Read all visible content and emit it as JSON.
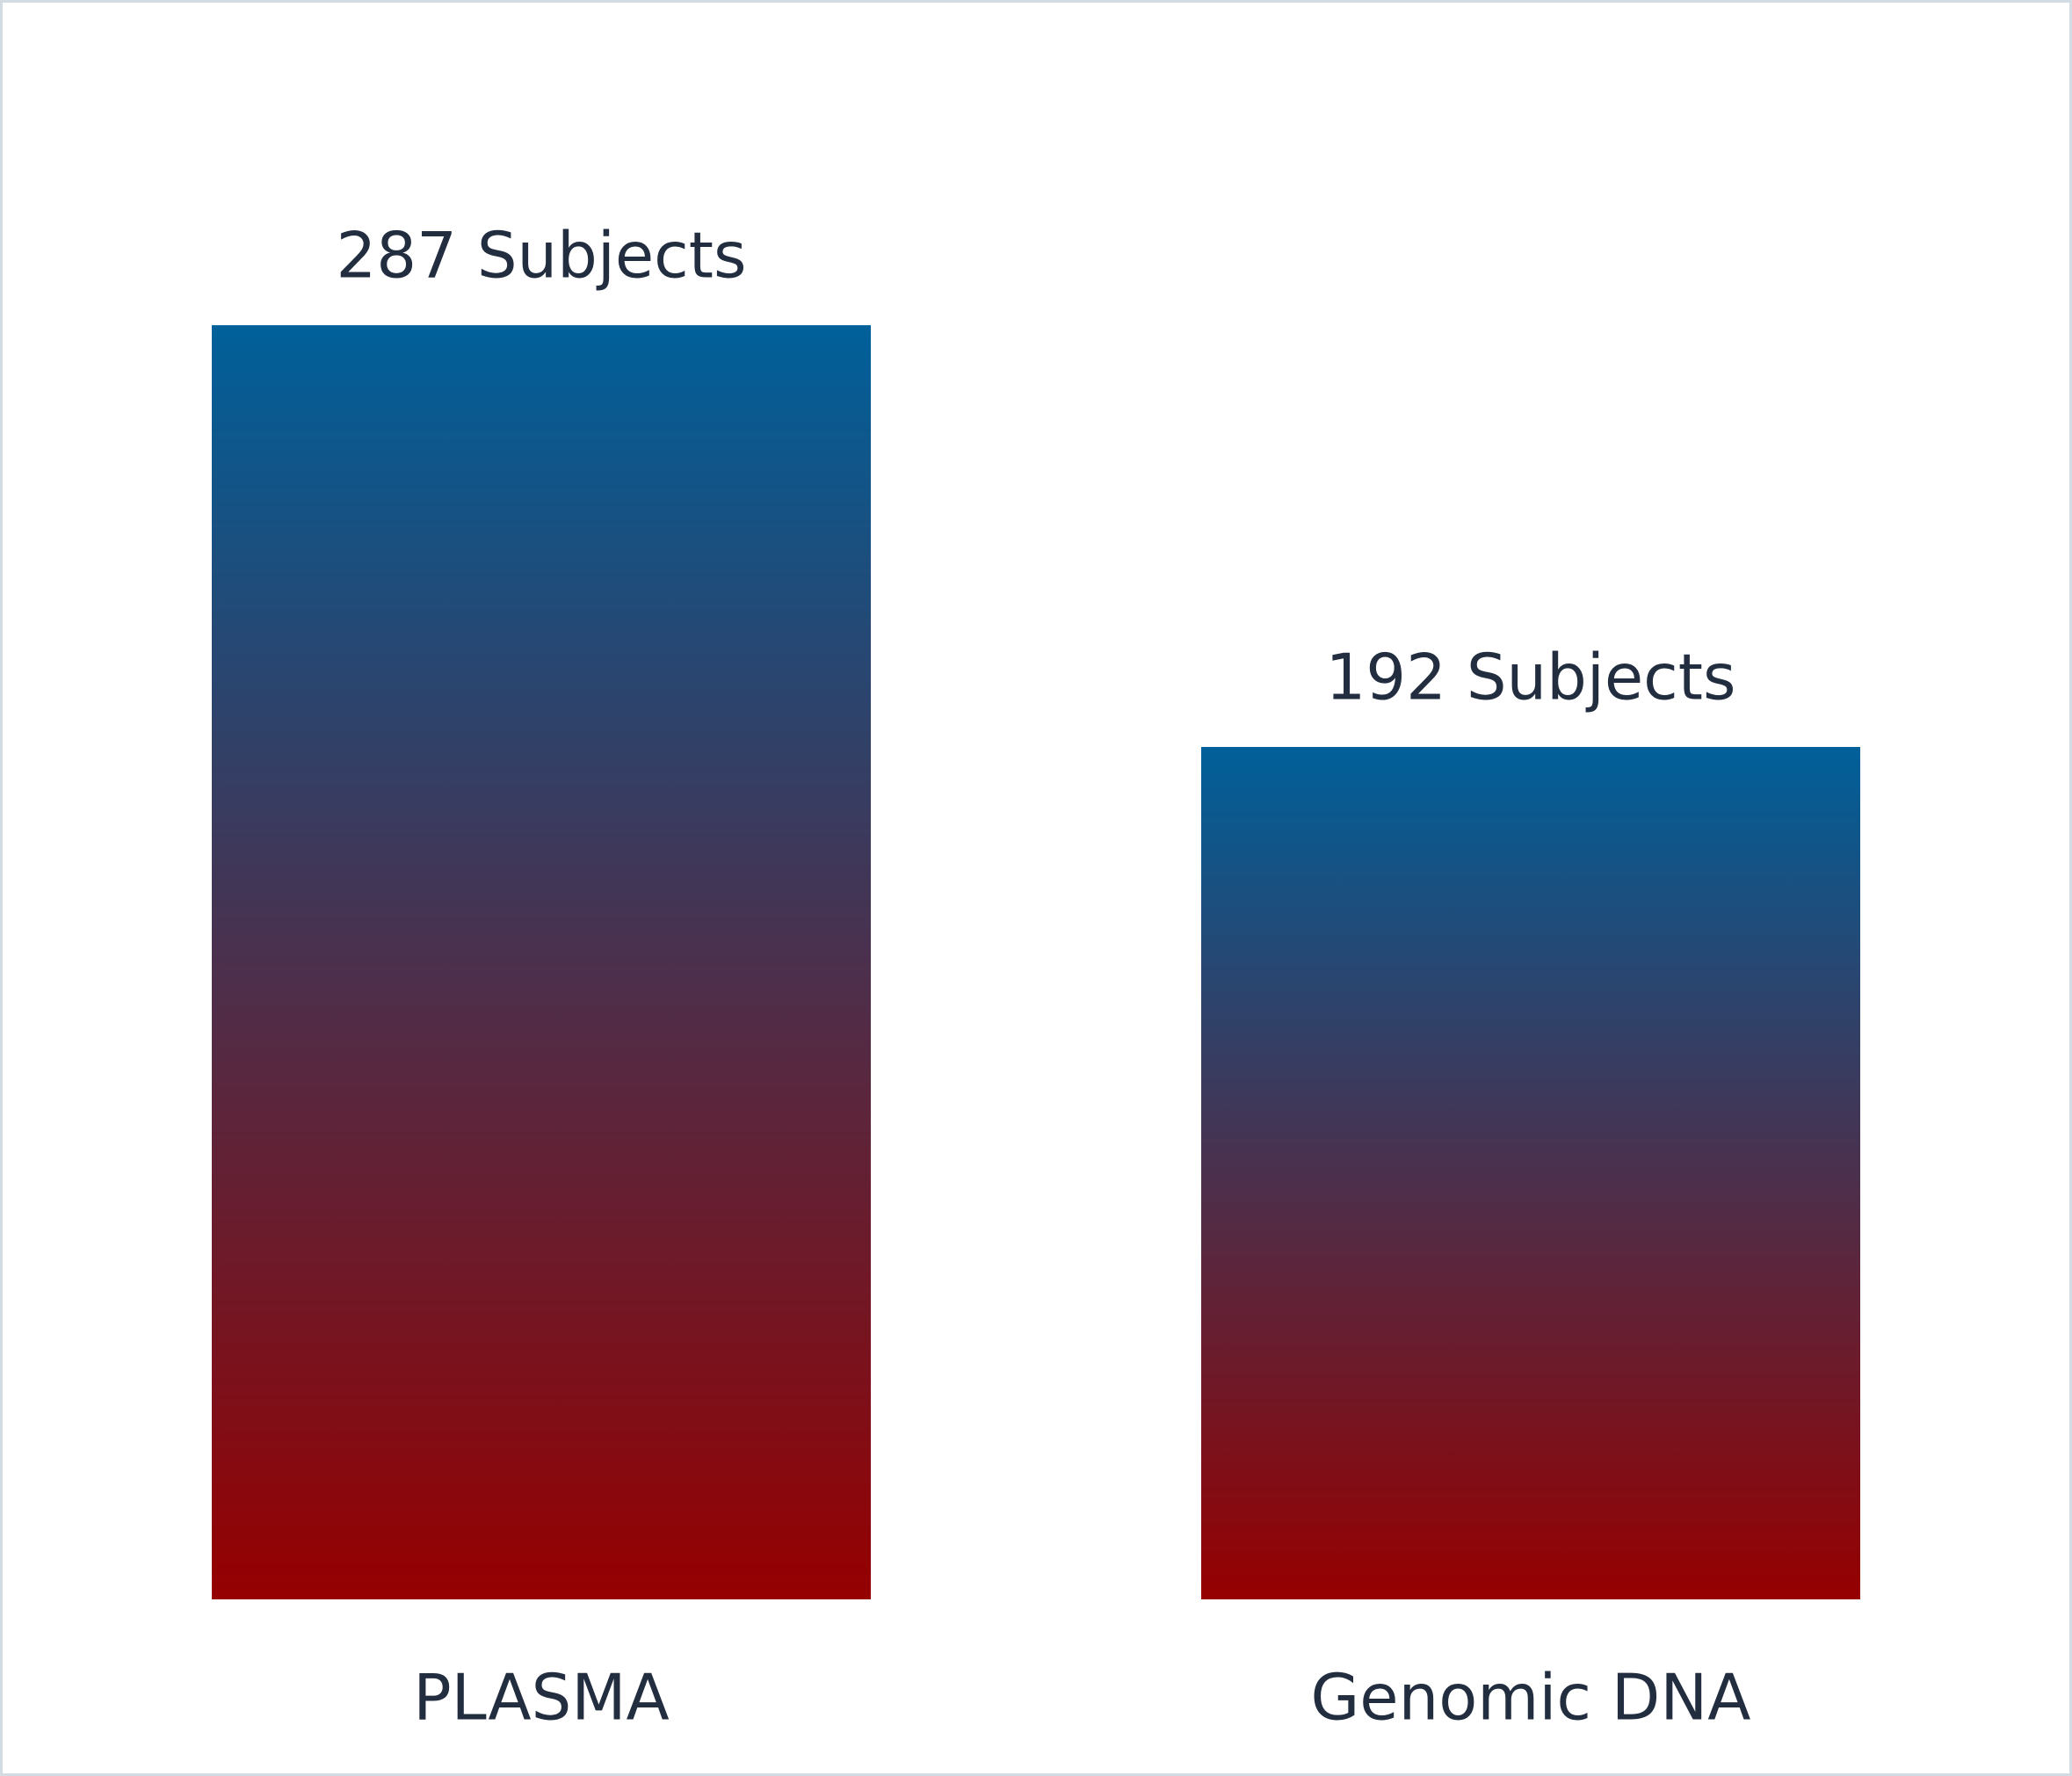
{
  "chart_data": {
    "type": "bar",
    "categories": [
      "PLASMA",
      "Genomic DNA"
    ],
    "values": [
      287,
      192
    ],
    "value_labels": [
      "287 Subjects",
      "192 Subjects"
    ],
    "gradient": [
      "#00609a",
      "#960000"
    ]
  }
}
